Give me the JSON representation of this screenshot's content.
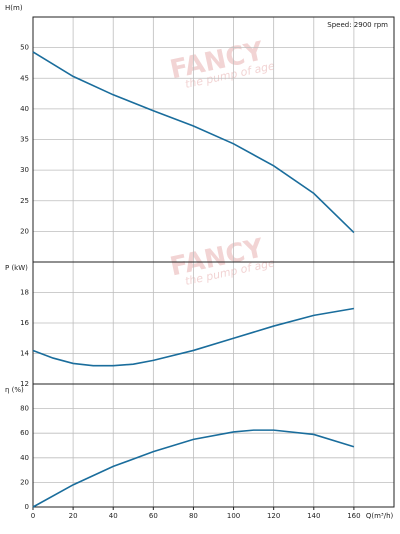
{
  "watermark": {
    "brand": "FANCY",
    "tagline": "the pump of age"
  },
  "chart_data": [
    {
      "type": "line",
      "y_label": "H(m)",
      "annotation": "Speed: 2900 rpm",
      "x": [
        0,
        20,
        40,
        60,
        80,
        100,
        120,
        140,
        160
      ],
      "series": [
        {
          "name": "H",
          "color": "#1a6d9c",
          "values": [
            49.3,
            45.3,
            42.3,
            39.7,
            37.2,
            34.3,
            30.7,
            26.2,
            19.8
          ]
        }
      ],
      "xlim": [
        0,
        180
      ],
      "xticks": [
        0,
        20,
        40,
        60,
        80,
        100,
        120,
        140,
        160
      ],
      "ylim": [
        15,
        55
      ],
      "yticks": [
        20,
        25,
        30,
        35,
        40,
        45,
        50
      ],
      "grid": true
    },
    {
      "type": "line",
      "y_label": "P (kW)",
      "x": [
        0,
        10,
        20,
        30,
        40,
        50,
        60,
        80,
        100,
        120,
        140,
        160
      ],
      "series": [
        {
          "name": "P",
          "color": "#1a6d9c",
          "values": [
            14.2,
            13.7,
            13.35,
            13.2,
            13.2,
            13.3,
            13.55,
            14.2,
            15.0,
            15.8,
            16.5,
            16.95
          ]
        }
      ],
      "xlim": [
        0,
        180
      ],
      "xticks": [
        0,
        20,
        40,
        60,
        80,
        100,
        120,
        140,
        160
      ],
      "ylim": [
        12,
        20
      ],
      "yticks": [
        12,
        14,
        16,
        18
      ],
      "grid": true
    },
    {
      "type": "line",
      "y_label": "η (%)",
      "x_label": "Q(m³/h)",
      "x": [
        0,
        20,
        40,
        60,
        80,
        100,
        110,
        120,
        140,
        160
      ],
      "series": [
        {
          "name": "η",
          "color": "#1a6d9c",
          "values": [
            0,
            18,
            33,
            45,
            55,
            61,
            62.5,
            62.5,
            59,
            49
          ]
        }
      ],
      "xlim": [
        0,
        180
      ],
      "xticks": [
        0,
        20,
        40,
        60,
        80,
        100,
        120,
        140,
        160
      ],
      "ylim": [
        0,
        100
      ],
      "yticks": [
        0,
        20,
        40,
        60,
        80
      ],
      "grid": true
    }
  ]
}
